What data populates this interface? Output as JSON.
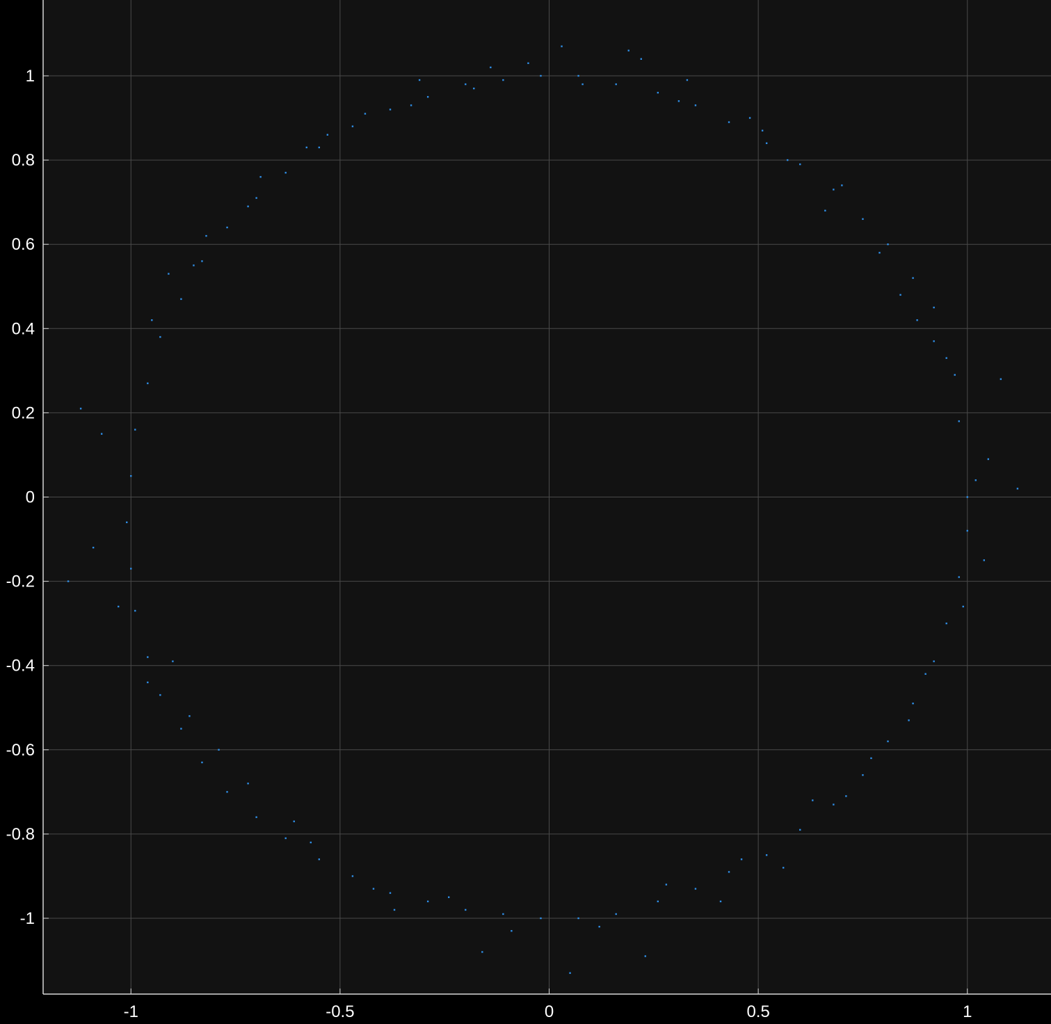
{
  "chart_data": {
    "type": "scatter",
    "title": "",
    "xlabel": "",
    "ylabel": "",
    "xlim": [
      -1.21,
      1.2
    ],
    "ylim": [
      -1.18,
      1.18
    ],
    "x_ticks": [
      -1,
      -0.5,
      0,
      0.5,
      1
    ],
    "x_tick_labels": [
      "-1",
      "-0.5",
      "0",
      "0.5",
      "1"
    ],
    "y_ticks": [
      -1,
      -0.8,
      -0.6,
      -0.4,
      -0.2,
      0,
      0.2,
      0.4,
      0.6,
      0.8,
      1
    ],
    "y_tick_labels": [
      "-1",
      "-0.8",
      "-0.6",
      "-0.4",
      "-0.2",
      "0",
      "0.2",
      "0.4",
      "0.6",
      "0.8",
      "1"
    ],
    "grid": true,
    "background_color": "#121212",
    "figure_color": "#000000",
    "grid_color": "#4a4a4a",
    "axis_color": "#d8d8d8",
    "text_color": "#ffffff",
    "series": [
      {
        "marker_color": "#2f8ee6",
        "description": "noisy ring of points",
        "x": [
          1.0,
          0.98,
          0.95,
          0.92,
          0.87,
          0.81,
          0.75,
          0.68,
          0.6,
          0.52,
          0.43,
          0.35,
          0.26,
          0.16,
          0.07,
          -0.02,
          -0.11,
          -0.2,
          -0.29,
          -0.38,
          -0.47,
          -0.55,
          -0.63,
          -0.7,
          -0.77,
          -0.83,
          -0.88,
          -0.93,
          -0.96,
          -0.99,
          -1.0,
          -1.01,
          -1.0,
          -0.99,
          -0.96,
          -0.93,
          -0.88,
          -0.83,
          -0.77,
          -0.7,
          -0.63,
          -0.55,
          -0.47,
          -0.38,
          -0.29,
          -0.2,
          -0.11,
          -0.02,
          0.07,
          0.16,
          0.26,
          0.35,
          0.43,
          0.52,
          0.6,
          0.68,
          0.75,
          0.81,
          0.87,
          0.92,
          0.95,
          0.98,
          1.0,
          1.02,
          1.05,
          0.92,
          0.88,
          0.79,
          0.7,
          0.57,
          0.48,
          0.31,
          0.22,
          0.08,
          -0.05,
          -0.18,
          -0.33,
          -0.44,
          -0.58,
          -0.72,
          -0.85,
          -0.95,
          -1.07,
          -1.09,
          -1.03,
          -0.96,
          -0.86,
          -0.72,
          -0.61,
          -0.42,
          -0.24,
          -0.09,
          0.12,
          0.28,
          0.46,
          0.63,
          0.77,
          0.9,
          1.04,
          1.12,
          1.08,
          0.97,
          0.84,
          0.66,
          0.51,
          0.33,
          0.19,
          0.03,
          -0.14,
          -0.31,
          -0.53,
          -0.69,
          -0.82,
          -0.91,
          -1.12,
          -1.15,
          -0.9,
          -0.79,
          -0.57,
          -0.37,
          -0.16,
          0.05,
          0.23,
          0.41,
          0.56,
          0.71,
          0.86,
          0.99
        ],
        "y": [
          0.0,
          0.18,
          0.33,
          0.45,
          0.52,
          0.6,
          0.66,
          0.73,
          0.79,
          0.84,
          0.89,
          0.93,
          0.96,
          0.98,
          1.0,
          1.0,
          0.99,
          0.98,
          0.95,
          0.92,
          0.88,
          0.83,
          0.77,
          0.71,
          0.64,
          0.56,
          0.47,
          0.38,
          0.27,
          0.16,
          0.05,
          -0.06,
          -0.17,
          -0.27,
          -0.38,
          -0.47,
          -0.55,
          -0.63,
          -0.7,
          -0.76,
          -0.81,
          -0.86,
          -0.9,
          -0.94,
          -0.96,
          -0.98,
          -0.99,
          -1.0,
          -1.0,
          -0.99,
          -0.96,
          -0.93,
          -0.89,
          -0.85,
          -0.79,
          -0.73,
          -0.66,
          -0.58,
          -0.49,
          -0.39,
          -0.3,
          -0.19,
          -0.08,
          0.04,
          0.09,
          0.37,
          0.42,
          0.58,
          0.74,
          0.8,
          0.9,
          0.94,
          1.04,
          0.98,
          1.03,
          0.97,
          0.93,
          0.91,
          0.83,
          0.69,
          0.55,
          0.42,
          0.15,
          -0.12,
          -0.26,
          -0.44,
          -0.52,
          -0.68,
          -0.77,
          -0.93,
          -0.95,
          -1.03,
          -1.02,
          -0.92,
          -0.86,
          -0.72,
          -0.62,
          -0.42,
          -0.15,
          0.02,
          0.28,
          0.29,
          0.48,
          0.68,
          0.87,
          0.99,
          1.06,
          1.07,
          1.02,
          0.99,
          0.86,
          0.76,
          0.62,
          0.53,
          0.21,
          -0.2,
          -0.39,
          -0.6,
          -0.82,
          -0.98,
          -1.08,
          -1.13,
          -1.09,
          -0.96,
          -0.88,
          -0.71,
          -0.53,
          -0.26
        ]
      }
    ]
  }
}
